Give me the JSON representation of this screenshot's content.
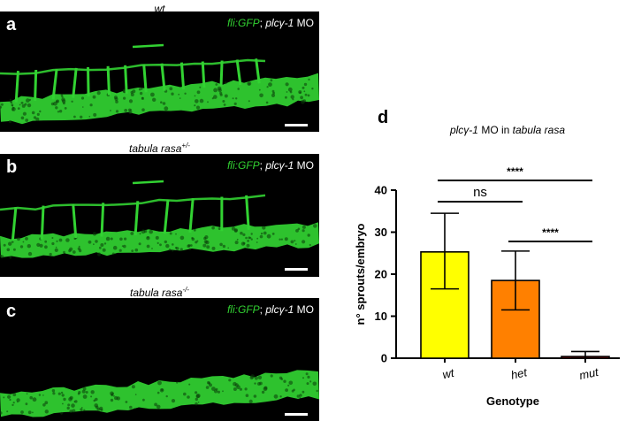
{
  "panels": [
    {
      "letter": "a",
      "title": "wt",
      "title_sup": "",
      "legend_gene": "fli:GFP",
      "legend_sep": "; ",
      "legend_mo_gene": "plcγ-1",
      "legend_mo": " MO",
      "vessel_count": 14
    },
    {
      "letter": "b",
      "title": "tabula rasa",
      "title_sup": "+/-",
      "legend_gene": "fli:GFP",
      "legend_sep": "; ",
      "legend_mo_gene": "plcγ-1",
      "legend_mo": " MO",
      "vessel_count": 9
    },
    {
      "letter": "c",
      "title": "tabula rasa",
      "title_sup": "-/-",
      "legend_gene": "fli:GFP",
      "legend_sep": "; ",
      "legend_mo_gene": "plcγ-1",
      "legend_mo": " MO",
      "vessel_count": 0
    }
  ],
  "chart": {
    "letter": "d",
    "title_gene": "plcγ-1",
    "title_mid": " MO in ",
    "title_line": "tabula rasa"
  },
  "colors": {
    "gfp": "#32d232",
    "bar_wt": "#ffff00",
    "bar_het": "#ff8000",
    "bar_mut": "#ff0000"
  },
  "chart_data": {
    "type": "bar",
    "categories": [
      "wt",
      "het",
      "mut"
    ],
    "values": [
      25.3,
      18.5,
      0.4
    ],
    "error_low": [
      16.5,
      11.5,
      0.0
    ],
    "error_high": [
      34.5,
      25.5,
      1.6
    ],
    "xlabel": "Genotype",
    "ylabel": "n° sprouts/embryo",
    "ylim": [
      0,
      40
    ],
    "yticks": [
      0,
      10,
      20,
      30,
      40
    ],
    "significance": [
      {
        "from": "wt",
        "to": "het",
        "label": "ns"
      },
      {
        "from": "het",
        "to": "mut",
        "label": "****"
      },
      {
        "from": "wt",
        "to": "mut",
        "label": "****"
      }
    ]
  }
}
